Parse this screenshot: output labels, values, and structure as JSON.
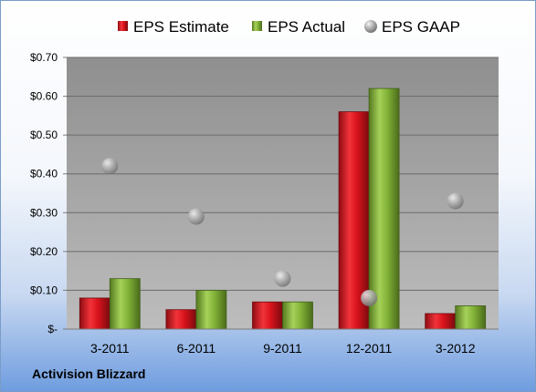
{
  "company_label": "Activision Blizzard",
  "colors": {
    "estimate": "#d9131c",
    "actual": "#83b338",
    "gaap": "#a9a9a9",
    "plot_bg": "#a6a6a6"
  },
  "chart_data": {
    "type": "bar",
    "categories": [
      "3-2011",
      "6-2011",
      "9-2011",
      "12-2011",
      "3-2012"
    ],
    "series": [
      {
        "name": "EPS Estimate",
        "kind": "bar",
        "values": [
          0.08,
          0.05,
          0.07,
          0.56,
          0.04
        ]
      },
      {
        "name": "EPS Actual",
        "kind": "bar",
        "values": [
          0.13,
          0.1,
          0.07,
          0.62,
          0.06
        ]
      },
      {
        "name": "EPS GAAP",
        "kind": "marker",
        "values": [
          0.42,
          0.29,
          0.13,
          0.08,
          0.33
        ]
      }
    ],
    "ylim": [
      0,
      0.7
    ],
    "y_ticks": [
      0,
      0.1,
      0.2,
      0.3,
      0.4,
      0.5,
      0.6,
      0.7
    ],
    "y_tick_labels": [
      "$-",
      "$0.10",
      "$0.20",
      "$0.30",
      "$0.40",
      "$0.50",
      "$0.60",
      "$0.70"
    ],
    "grid": true,
    "legend_position": "top"
  }
}
